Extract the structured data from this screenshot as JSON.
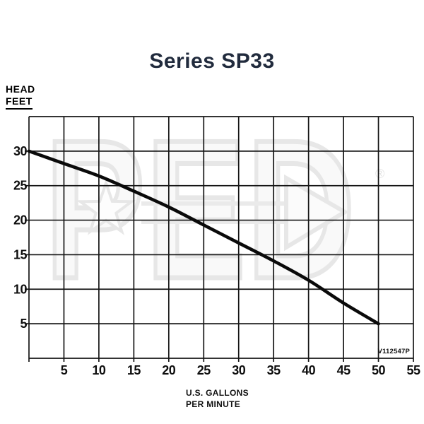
{
  "title": "Series SP33",
  "y_axis_title": [
    "HEAD",
    "FEET"
  ],
  "x_axis_title": [
    "U.S. GALLONS",
    "PER MINUTE"
  ],
  "figure_code": "V112547P",
  "watermark": {
    "text": "PED",
    "registered_mark": "®"
  },
  "colors": {
    "title_text": "#212b3d",
    "axis_text": "#0e0e0e",
    "grid_line": "#161616",
    "curve": "#0a0a0a",
    "watermark_stroke": "#e7e7e7",
    "watermark_fill": "#f9f9f9",
    "background": "#ffffff"
  },
  "chart_data": {
    "type": "line",
    "title": "Series SP33",
    "xlabel": "U.S. GALLONS PER MINUTE",
    "ylabel": "HEAD FEET",
    "xlim": [
      0,
      55
    ],
    "ylim": [
      0,
      35
    ],
    "x_ticks": [
      5,
      10,
      15,
      20,
      25,
      30,
      35,
      40,
      45,
      50,
      55
    ],
    "y_ticks": [
      5,
      10,
      15,
      20,
      25,
      30
    ],
    "grid": true,
    "legend": false,
    "figure_code": "V112547P",
    "series": [
      {
        "name": "head_vs_flow",
        "x": [
          0,
          5,
          10,
          15,
          20,
          25,
          30,
          35,
          40,
          45,
          50
        ],
        "y": [
          30,
          28.2,
          26.4,
          24.2,
          21.9,
          19.3,
          16.7,
          14.1,
          11.3,
          8.0,
          5
        ]
      }
    ]
  }
}
